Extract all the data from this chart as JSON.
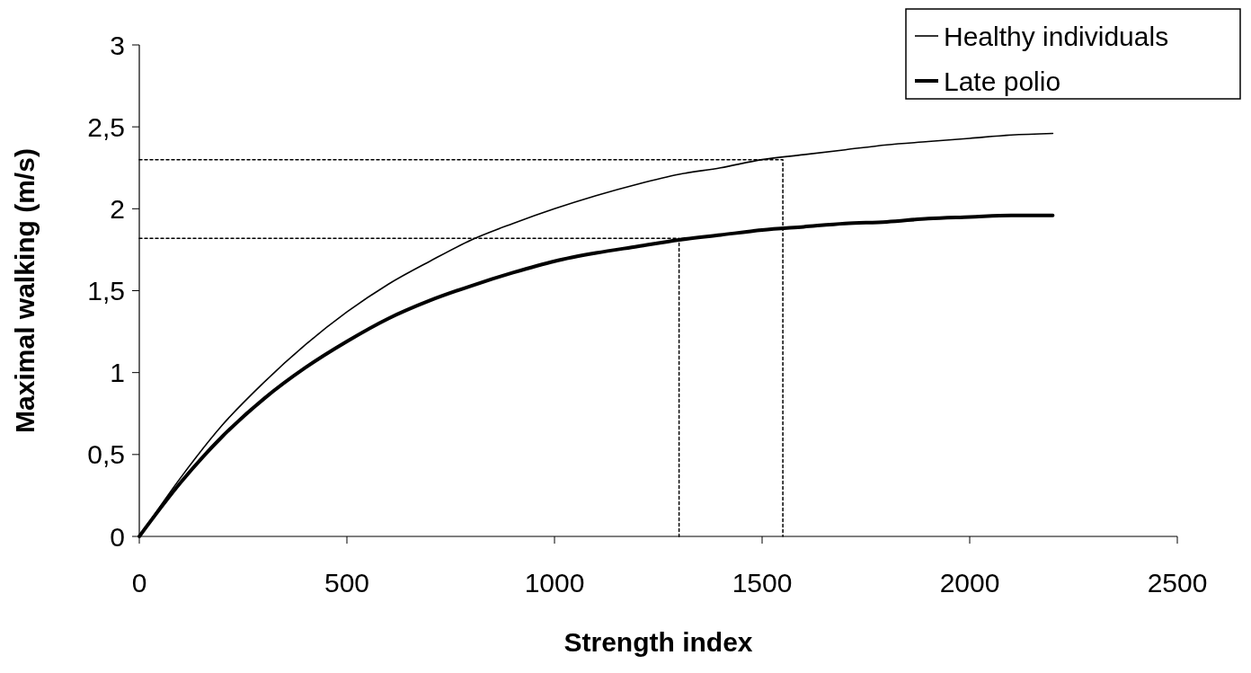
{
  "chart_data": {
    "type": "line",
    "xlabel": "Strength index",
    "ylabel": "Maximal walking (m/s)",
    "xlim": [
      0,
      2500
    ],
    "xticks": [
      0,
      500,
      1000,
      1500,
      2000,
      2500
    ],
    "ylim": [
      0,
      3
    ],
    "yticks": [
      0,
      {
        "value": 0.5,
        "label": "0,5"
      },
      1,
      {
        "value": 1.5,
        "label": "1,5"
      },
      2,
      {
        "value": 2.5,
        "label": "2,5"
      },
      3
    ],
    "grid": false,
    "legend": "top right",
    "marker": "none",
    "series": [
      {
        "name": "Healthy individuals",
        "color": "#000000",
        "line_style": "solid",
        "x": [
          0,
          100,
          200,
          300,
          400,
          500,
          600,
          700,
          800,
          900,
          1000,
          1100,
          1200,
          1300,
          1400,
          1500,
          1600,
          1700,
          1800,
          1900,
          2000,
          2100,
          2200
        ],
        "values": [
          0,
          0.36,
          0.68,
          0.94,
          1.17,
          1.37,
          1.54,
          1.68,
          1.81,
          1.91,
          2.0,
          2.08,
          2.15,
          2.21,
          2.25,
          2.3,
          2.33,
          2.36,
          2.39,
          2.41,
          2.43,
          2.45,
          2.46
        ]
      },
      {
        "name": "Late polio",
        "color": "#000000",
        "line_style": "solid",
        "x": [
          0,
          100,
          200,
          300,
          400,
          500,
          600,
          700,
          800,
          900,
          1000,
          1100,
          1200,
          1300,
          1400,
          1500,
          1600,
          1700,
          1800,
          1900,
          2000,
          2100,
          2200
        ],
        "values": [
          0,
          0.33,
          0.61,
          0.84,
          1.03,
          1.19,
          1.33,
          1.44,
          1.53,
          1.61,
          1.68,
          1.73,
          1.77,
          1.81,
          1.84,
          1.87,
          1.89,
          1.91,
          1.92,
          1.94,
          1.95,
          1.96,
          1.96
        ]
      },
      {
        "color": "#000000",
        "line_style": "dotted",
        "x": [
          0,
          1550,
          1550
        ],
        "values": [
          2.3,
          2.3,
          0
        ]
      },
      {
        "color": "#000000",
        "line_style": "dotted",
        "x": [
          0,
          1300,
          1300
        ],
        "values": [
          1.82,
          1.82,
          0
        ]
      }
    ]
  }
}
